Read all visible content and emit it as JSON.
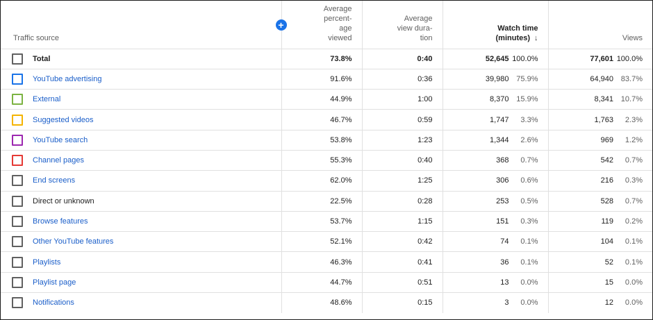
{
  "columns": {
    "source": "Traffic source",
    "pct_viewed": [
      "Average",
      "percent-",
      "age",
      "viewed"
    ],
    "avg_duration": [
      "Average",
      "view dura-",
      "tion"
    ],
    "watch_time": [
      "Watch time",
      "(minutes)"
    ],
    "views": "Views"
  },
  "icons": {
    "add": "plus-circle-icon",
    "sort": "arrow-down-icon"
  },
  "add_symbol": "+",
  "sort_symbol": "↓",
  "colors": {
    "accent": "#1a73e8",
    "link": "#1a5ec9",
    "youtube_advertising": "#1a73e8",
    "external": "#7cb342",
    "suggested_videos": "#f4b400",
    "youtube_search": "#9c27b0",
    "channel_pages": "#e53935",
    "default": "#606060"
  },
  "rows": [
    {
      "source": "Total",
      "pct_viewed": "73.8%",
      "avg_duration": "0:40",
      "watch_time": "52,645",
      "watch_time_pct": "100.0%",
      "views": "77,601",
      "views_pct": "100.0%"
    },
    {
      "source": "YouTube advertising",
      "pct_viewed": "91.6%",
      "avg_duration": "0:36",
      "watch_time": "39,980",
      "watch_time_pct": "75.9%",
      "views": "64,940",
      "views_pct": "83.7%"
    },
    {
      "source": "External",
      "pct_viewed": "44.9%",
      "avg_duration": "1:00",
      "watch_time": "8,370",
      "watch_time_pct": "15.9%",
      "views": "8,341",
      "views_pct": "10.7%"
    },
    {
      "source": "Suggested videos",
      "pct_viewed": "46.7%",
      "avg_duration": "0:59",
      "watch_time": "1,747",
      "watch_time_pct": "3.3%",
      "views": "1,763",
      "views_pct": "2.3%"
    },
    {
      "source": "YouTube search",
      "pct_viewed": "53.8%",
      "avg_duration": "1:23",
      "watch_time": "1,344",
      "watch_time_pct": "2.6%",
      "views": "969",
      "views_pct": "1.2%"
    },
    {
      "source": "Channel pages",
      "pct_viewed": "55.3%",
      "avg_duration": "0:40",
      "watch_time": "368",
      "watch_time_pct": "0.7%",
      "views": "542",
      "views_pct": "0.7%"
    },
    {
      "source": "End screens",
      "pct_viewed": "62.0%",
      "avg_duration": "1:25",
      "watch_time": "306",
      "watch_time_pct": "0.6%",
      "views": "216",
      "views_pct": "0.3%"
    },
    {
      "source": "Direct or unknown",
      "pct_viewed": "22.5%",
      "avg_duration": "0:28",
      "watch_time": "253",
      "watch_time_pct": "0.5%",
      "views": "528",
      "views_pct": "0.7%"
    },
    {
      "source": "Browse features",
      "pct_viewed": "53.7%",
      "avg_duration": "1:15",
      "watch_time": "151",
      "watch_time_pct": "0.3%",
      "views": "119",
      "views_pct": "0.2%"
    },
    {
      "source": "Other YouTube features",
      "pct_viewed": "52.1%",
      "avg_duration": "0:42",
      "watch_time": "74",
      "watch_time_pct": "0.1%",
      "views": "104",
      "views_pct": "0.1%"
    },
    {
      "source": "Playlists",
      "pct_viewed": "46.3%",
      "avg_duration": "0:41",
      "watch_time": "36",
      "watch_time_pct": "0.1%",
      "views": "52",
      "views_pct": "0.1%"
    },
    {
      "source": "Playlist page",
      "pct_viewed": "44.7%",
      "avg_duration": "0:51",
      "watch_time": "13",
      "watch_time_pct": "0.0%",
      "views": "15",
      "views_pct": "0.0%"
    },
    {
      "source": "Notifications",
      "pct_viewed": "48.6%",
      "avg_duration": "0:15",
      "watch_time": "3",
      "watch_time_pct": "0.0%",
      "views": "12",
      "views_pct": "0.0%"
    }
  ]
}
